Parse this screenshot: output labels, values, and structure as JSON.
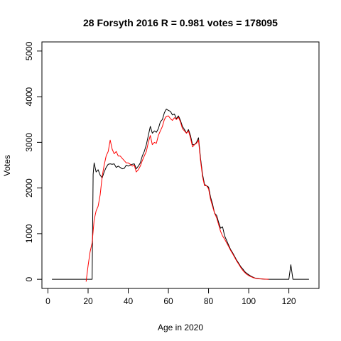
{
  "chart_data": {
    "type": "line",
    "title": "28 Forsyth 2016 R = 0.981 votes = 178095",
    "xlabel": "Age in 2020",
    "ylabel": "Votes",
    "xlim": [
      -3,
      135
    ],
    "ylim": [
      -200,
      5200
    ],
    "xticks": [
      0,
      20,
      40,
      60,
      80,
      100,
      120
    ],
    "yticks": [
      0,
      1000,
      2000,
      3000,
      4000,
      5000
    ],
    "grid": false,
    "legend": "none",
    "series": [
      {
        "color": "#000000",
        "points": [
          [
            2,
            0
          ],
          [
            18,
            0
          ],
          [
            22,
            0
          ],
          [
            22.5,
            2300
          ],
          [
            23,
            2550
          ],
          [
            24,
            2350
          ],
          [
            25,
            2400
          ],
          [
            26,
            2280
          ],
          [
            27,
            2220
          ],
          [
            28,
            2350
          ],
          [
            29,
            2450
          ],
          [
            30,
            2520
          ],
          [
            31,
            2530
          ],
          [
            32,
            2520
          ],
          [
            33,
            2530
          ],
          [
            34,
            2450
          ],
          [
            35,
            2480
          ],
          [
            36,
            2450
          ],
          [
            37,
            2420
          ],
          [
            38,
            2430
          ],
          [
            39,
            2500
          ],
          [
            40,
            2480
          ],
          [
            41,
            2500
          ],
          [
            42,
            2520
          ],
          [
            43,
            2530
          ],
          [
            44,
            2420
          ],
          [
            45,
            2480
          ],
          [
            46,
            2550
          ],
          [
            47,
            2700
          ],
          [
            48,
            2800
          ],
          [
            49,
            2950
          ],
          [
            50,
            3150
          ],
          [
            51,
            3350
          ],
          [
            52,
            3200
          ],
          [
            53,
            3250
          ],
          [
            54,
            3220
          ],
          [
            55,
            3300
          ],
          [
            56,
            3450
          ],
          [
            57,
            3500
          ],
          [
            58,
            3650
          ],
          [
            59,
            3730
          ],
          [
            60,
            3700
          ],
          [
            61,
            3680
          ],
          [
            62,
            3600
          ],
          [
            63,
            3620
          ],
          [
            64,
            3520
          ],
          [
            65,
            3580
          ],
          [
            66,
            3480
          ],
          [
            67,
            3350
          ],
          [
            68,
            3280
          ],
          [
            69,
            3200
          ],
          [
            70,
            3280
          ],
          [
            71,
            3150
          ],
          [
            72,
            2950
          ],
          [
            73,
            2950
          ],
          [
            74,
            3000
          ],
          [
            75,
            3100
          ],
          [
            76,
            2650
          ],
          [
            77,
            2300
          ],
          [
            78,
            2080
          ],
          [
            79,
            2050
          ],
          [
            80,
            2020
          ],
          [
            81,
            1800
          ],
          [
            82,
            1650
          ],
          [
            83,
            1450
          ],
          [
            84,
            1400
          ],
          [
            85,
            1250
          ],
          [
            86,
            1120
          ],
          [
            87,
            1150
          ],
          [
            88,
            950
          ],
          [
            89,
            850
          ],
          [
            90,
            750
          ],
          [
            91,
            650
          ],
          [
            92,
            580
          ],
          [
            93,
            500
          ],
          [
            94,
            420
          ],
          [
            95,
            350
          ],
          [
            96,
            280
          ],
          [
            97,
            230
          ],
          [
            98,
            170
          ],
          [
            99,
            130
          ],
          [
            100,
            100
          ],
          [
            101,
            70
          ],
          [
            102,
            50
          ],
          [
            103,
            30
          ],
          [
            104,
            20
          ],
          [
            105,
            15
          ],
          [
            106,
            10
          ],
          [
            107,
            5
          ],
          [
            108,
            3
          ],
          [
            110,
            0
          ],
          [
            120,
            0
          ],
          [
            121,
            320
          ],
          [
            122,
            0
          ],
          [
            130,
            0
          ]
        ]
      },
      {
        "color": "#ff0000",
        "points": [
          [
            19,
            -50
          ],
          [
            20,
            300
          ],
          [
            21,
            600
          ],
          [
            22,
            800
          ],
          [
            23,
            1300
          ],
          [
            24,
            1500
          ],
          [
            25,
            1600
          ],
          [
            26,
            1850
          ],
          [
            27,
            2250
          ],
          [
            28,
            2500
          ],
          [
            29,
            2700
          ],
          [
            30,
            2800
          ],
          [
            31,
            3050
          ],
          [
            32,
            2850
          ],
          [
            33,
            2750
          ],
          [
            34,
            2800
          ],
          [
            35,
            2700
          ],
          [
            36,
            2700
          ],
          [
            37,
            2650
          ],
          [
            38,
            2600
          ],
          [
            39,
            2550
          ],
          [
            40,
            2550
          ],
          [
            41,
            2520
          ],
          [
            42,
            2480
          ],
          [
            43,
            2500
          ],
          [
            44,
            2350
          ],
          [
            45,
            2400
          ],
          [
            46,
            2480
          ],
          [
            47,
            2600
          ],
          [
            48,
            2700
          ],
          [
            49,
            2800
          ],
          [
            50,
            3000
          ],
          [
            51,
            3150
          ],
          [
            52,
            2950
          ],
          [
            53,
            3000
          ],
          [
            54,
            2980
          ],
          [
            55,
            3150
          ],
          [
            56,
            3250
          ],
          [
            57,
            3350
          ],
          [
            58,
            3500
          ],
          [
            59,
            3570
          ],
          [
            60,
            3580
          ],
          [
            61,
            3520
          ],
          [
            62,
            3480
          ],
          [
            63,
            3540
          ],
          [
            64,
            3500
          ],
          [
            65,
            3550
          ],
          [
            66,
            3450
          ],
          [
            67,
            3300
          ],
          [
            68,
            3250
          ],
          [
            69,
            3200
          ],
          [
            70,
            3250
          ],
          [
            71,
            3100
          ],
          [
            72,
            2900
          ],
          [
            73,
            2950
          ],
          [
            74,
            2980
          ],
          [
            75,
            3050
          ],
          [
            76,
            2600
          ],
          [
            77,
            2250
          ],
          [
            78,
            2050
          ],
          [
            79,
            2050
          ],
          [
            80,
            1980
          ],
          [
            81,
            1750
          ],
          [
            82,
            1600
          ],
          [
            83,
            1450
          ],
          [
            84,
            1350
          ],
          [
            85,
            1200
          ],
          [
            86,
            1050
          ],
          [
            87,
            950
          ],
          [
            88,
            880
          ],
          [
            89,
            800
          ],
          [
            90,
            720
          ],
          [
            91,
            630
          ],
          [
            92,
            560
          ],
          [
            93,
            480
          ],
          [
            94,
            400
          ],
          [
            95,
            330
          ],
          [
            96,
            260
          ],
          [
            97,
            200
          ],
          [
            98,
            150
          ],
          [
            99,
            110
          ],
          [
            100,
            80
          ],
          [
            101,
            60
          ],
          [
            102,
            40
          ],
          [
            103,
            25
          ],
          [
            104,
            15
          ],
          [
            105,
            10
          ],
          [
            107,
            5
          ],
          [
            110,
            0
          ]
        ]
      }
    ]
  }
}
